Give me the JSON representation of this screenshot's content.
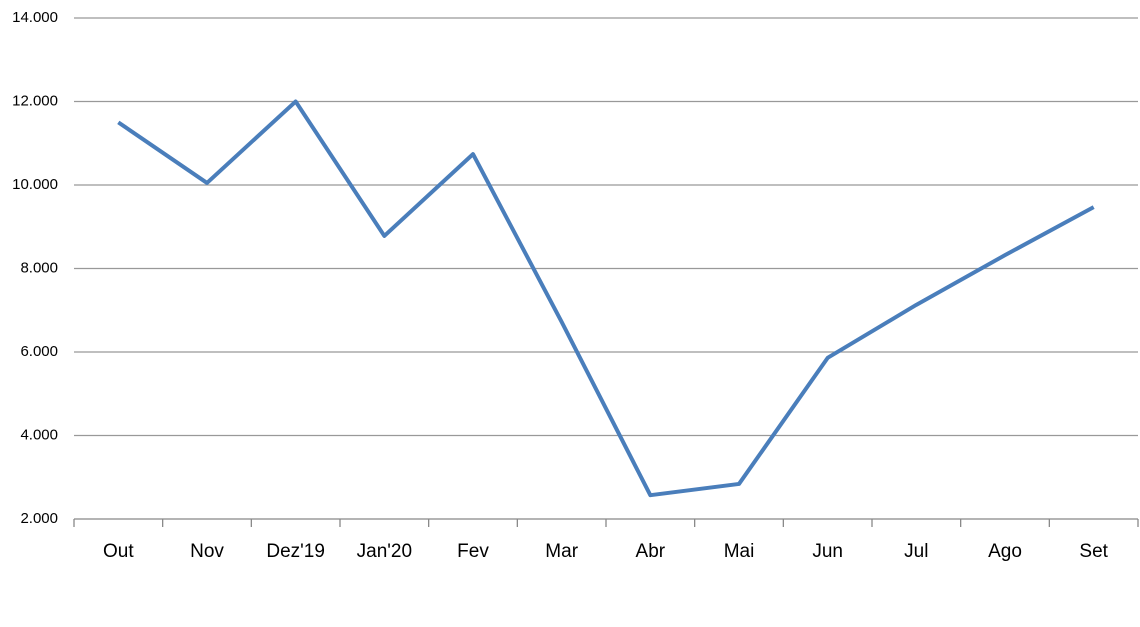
{
  "chart_data": {
    "type": "line",
    "categories": [
      "Out",
      "Nov",
      "Dez'19",
      "Jan'20",
      "Fev",
      "Mar",
      "Abr",
      "Mai",
      "Jun",
      "Jul",
      "Ago",
      "Set"
    ],
    "series": [
      {
        "color": "#4a7ebb",
        "values": [
          11500,
          10050,
          12000,
          8780,
          10740,
          6720,
          2570,
          2840,
          5860,
          7130,
          8320,
          9470
        ]
      }
    ],
    "ylim": [
      2000,
      14000
    ],
    "yticks": [
      {
        "value": 2000,
        "label": "2.000"
      },
      {
        "value": 4000,
        "label": "4.000"
      },
      {
        "value": 6000,
        "label": "6.000"
      },
      {
        "value": 8000,
        "label": "8.000"
      },
      {
        "value": 10000,
        "label": "10.000"
      },
      {
        "value": 12000,
        "label": "12.000"
      },
      {
        "value": 14000,
        "label": "14.000"
      }
    ],
    "grid": true
  }
}
